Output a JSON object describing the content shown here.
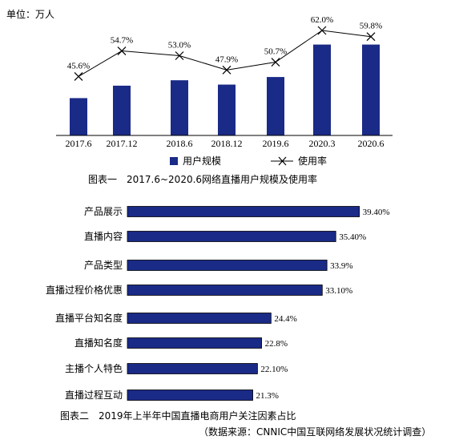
{
  "chart_data": [
    {
      "type": "bar",
      "unit_label": "单位：万人",
      "categories": [
        "2017.6",
        "2017.12",
        "2018.6",
        "2018.12",
        "2019.6",
        "2020.3",
        "2020.6"
      ],
      "series": [
        {
          "name": "用户规模",
          "values": [
            34.5,
            46.0,
            51.0,
            47.0,
            54.0,
            84.0,
            84.0
          ],
          "color": "#1a2a87"
        },
        {
          "name": "使用率",
          "values": [
            45.6,
            54.7,
            53.0,
            47.9,
            50.7,
            62.0,
            59.8
          ],
          "labels": [
            "45.6%",
            "54.7%",
            "53.0%",
            "47.9%",
            "50.7%",
            "62.0%",
            "59.8%"
          ],
          "type": "line",
          "color": "#000000"
        }
      ],
      "caption": "图表一　2017.6~2020.6网络直播用户规模及使用率"
    },
    {
      "type": "bar",
      "orientation": "horizontal",
      "categories": [
        "产品展示",
        "直播内容",
        "产品类型",
        "直播过程价格优惠",
        "直播平台知名度",
        "直播知名度",
        "主播个人特色",
        "直播过程互动"
      ],
      "values": [
        39.4,
        35.4,
        33.9,
        33.1,
        24.4,
        22.8,
        22.1,
        21.3
      ],
      "labels": [
        "39.40%",
        "35.40%",
        "33.9%",
        "33.10%",
        "24.4%",
        "22.8%",
        "22.10%",
        "21.3%"
      ],
      "color": "#1a2a87",
      "caption": "图表二　2019年上半年中国直播电商用户关注因素占比",
      "source": "（数据来源：CNNIC中国互联网络发展状况统计调查）"
    }
  ]
}
